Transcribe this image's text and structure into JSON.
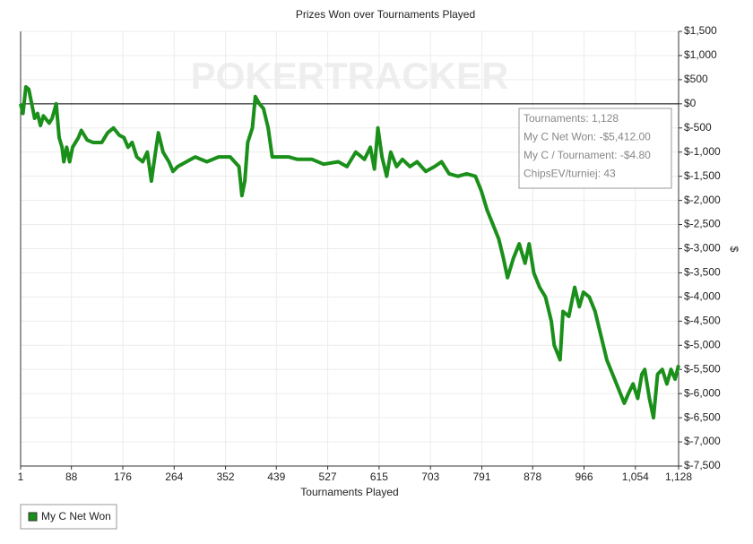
{
  "chart_data": {
    "type": "line",
    "title": "Prizes Won over Tournaments Played",
    "x_label": "Tournaments Played",
    "y_label": "$",
    "watermark": "POKERTRACKER",
    "grid": true,
    "legend": "bottom-left",
    "tooltip": [
      "Tournaments: 1,128",
      "My C Net Won: -$5,412.00",
      "My C / Tournament: -$4.80",
      "ChipsEV/turniej: 43"
    ],
    "xlim": [
      1,
      1128
    ],
    "xticks": [
      1,
      88,
      176,
      264,
      352,
      439,
      527,
      615,
      703,
      791,
      878,
      966,
      {
        "value": 1054,
        "label": "1,054"
      },
      {
        "value": 1128,
        "label": "1,128"
      }
    ],
    "ylim": [
      -7500,
      1500
    ],
    "yticks": [
      {
        "value": 1500,
        "label": "$1,500"
      },
      {
        "value": 1000,
        "label": "$1,000"
      },
      {
        "value": 500,
        "label": "$500"
      },
      {
        "value": 0,
        "label": "$0"
      },
      {
        "value": -500,
        "label": "$-500"
      },
      {
        "value": -1000,
        "label": "$-1,000"
      },
      {
        "value": -1500,
        "label": "$-1,500"
      },
      {
        "value": -2000,
        "label": "$-2,000"
      },
      {
        "value": -2500,
        "label": "$-2,500"
      },
      {
        "value": -3000,
        "label": "$-3,000"
      },
      {
        "value": -3500,
        "label": "$-3,500"
      },
      {
        "value": -4000,
        "label": "$-4,000"
      },
      {
        "value": -4500,
        "label": "$-4,500"
      },
      {
        "value": -5000,
        "label": "$-5,000"
      },
      {
        "value": -5500,
        "label": "$-5,500"
      },
      {
        "value": -6000,
        "label": "$-6,000"
      },
      {
        "value": -6500,
        "label": "$-6,500"
      },
      {
        "value": -7000,
        "label": "$-7,000"
      },
      {
        "value": -7500,
        "label": "$-7,500"
      }
    ],
    "x": [
      1,
      5,
      10,
      15,
      20,
      25,
      30,
      35,
      40,
      50,
      55,
      62,
      67,
      72,
      75,
      80,
      85,
      90,
      100,
      105,
      115,
      125,
      140,
      150,
      160,
      170,
      178,
      185,
      192,
      200,
      210,
      218,
      225,
      232,
      237,
      245,
      255,
      262,
      270,
      285,
      300,
      320,
      340,
      360,
      375,
      380,
      385,
      390,
      398,
      403,
      410,
      417,
      425,
      432,
      445,
      460,
      475,
      500,
      520,
      545,
      560,
      575,
      590,
      600,
      607,
      613,
      620,
      628,
      635,
      645,
      655,
      668,
      680,
      695,
      710,
      722,
      735,
      750,
      765,
      780,
      790,
      800,
      810,
      820,
      828,
      835,
      845,
      855,
      865,
      872,
      880,
      890,
      900,
      910,
      915,
      925,
      930,
      940,
      950,
      958,
      965,
      975,
      985,
      995,
      1005,
      1015,
      1025,
      1035,
      1042,
      1050,
      1058,
      1065,
      1070,
      1078,
      1085,
      1092,
      1100,
      1108,
      1115,
      1122,
      1128
    ],
    "series": [
      {
        "name": "My C Net Won",
        "color": "#1a8f1a",
        "values": [
          0,
          -200,
          350,
          300,
          0,
          -300,
          -200,
          -450,
          -250,
          -400,
          -300,
          0,
          -700,
          -900,
          -1200,
          -900,
          -1200,
          -900,
          -700,
          -550,
          -750,
          -800,
          -800,
          -600,
          -500,
          -650,
          -700,
          -900,
          -800,
          -1100,
          -1200,
          -1000,
          -1600,
          -1000,
          -600,
          -1000,
          -1200,
          -1400,
          -1300,
          -1200,
          -1100,
          -1200,
          -1100,
          -1100,
          -1300,
          -1900,
          -1600,
          -800,
          -500,
          150,
          0,
          -100,
          -500,
          -1100,
          -1100,
          -1100,
          -1150,
          -1150,
          -1250,
          -1200,
          -1300,
          -1000,
          -1150,
          -900,
          -1350,
          -500,
          -1100,
          -1500,
          -1000,
          -1300,
          -1150,
          -1300,
          -1200,
          -1400,
          -1300,
          -1200,
          -1450,
          -1500,
          -1450,
          -1500,
          -1800,
          -2200,
          -2500,
          -2800,
          -3200,
          -3600,
          -3200,
          -2900,
          -3300,
          -2900,
          -3500,
          -3800,
          -4000,
          -4500,
          -5000,
          -5300,
          -4300,
          -4400,
          -3800,
          -4200,
          -3900,
          -4000,
          -4300,
          -4800,
          -5300,
          -5600,
          -5900,
          -6200,
          -6000,
          -5800,
          -6100,
          -5600,
          -5500,
          -6100,
          -6500,
          -5600,
          -5500,
          -5800,
          -5500,
          -5700,
          -5412
        ]
      }
    ]
  }
}
